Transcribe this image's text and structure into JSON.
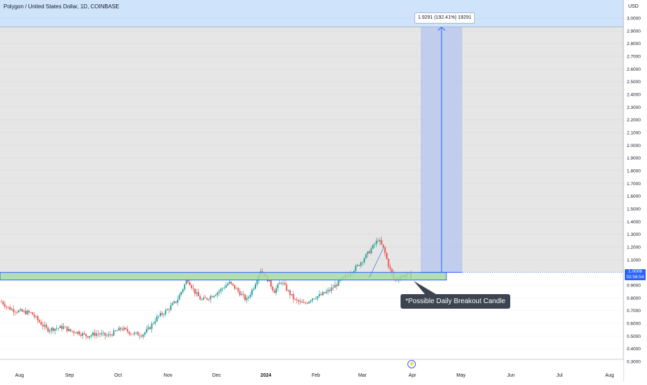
{
  "header": {
    "symbol_title": "Polygon / United States Dollar, 1D, COINBASE",
    "currency": "USD"
  },
  "colors": {
    "up": "#2aa39b",
    "down": "#ef5350",
    "zone_fill": "#a3d9a5",
    "zone_border": "#2962ff",
    "target_band": "#b7c7ee",
    "grey_region": "#e6e6e6"
  },
  "annotations": {
    "breakout_note": "*Possible Daily Breakout Candle",
    "measure_label": "1.9291 (192.41%) 19291",
    "last_price": "1.0008",
    "countdown": "02:56:54"
  },
  "chart_data": {
    "type": "candlestick",
    "title": "Polygon / United States Dollar, 1D, COINBASE",
    "y_unit": "USD",
    "y_ticks": [
      "3.0000",
      "2.9000",
      "2.8000",
      "2.7000",
      "2.6000",
      "2.5000",
      "2.4000",
      "2.3000",
      "2.2000",
      "2.1000",
      "2.0000",
      "1.9000",
      "1.8000",
      "1.7000",
      "1.6000",
      "1.5000",
      "1.4000",
      "1.3000",
      "1.2000",
      "1.1000",
      "1.0000",
      "0.9000",
      "0.8000",
      "0.7000",
      "0.6000",
      "0.5000",
      "0.4000",
      "0.3000"
    ],
    "x_ticks": [
      "Aug",
      "Sep",
      "Oct",
      "Nov",
      "Dec",
      "2024",
      "Feb",
      "Mar",
      "Apr",
      "May",
      "Jun",
      "Jul",
      "Aug"
    ],
    "anchors": [
      [
        0,
        0.78
      ],
      [
        12,
        0.72
      ],
      [
        22,
        0.7
      ],
      [
        32,
        0.69
      ],
      [
        45,
        0.68
      ],
      [
        55,
        0.62
      ],
      [
        68,
        0.55
      ],
      [
        80,
        0.56
      ],
      [
        92,
        0.57
      ],
      [
        100,
        0.54
      ],
      [
        112,
        0.53
      ],
      [
        125,
        0.5
      ],
      [
        140,
        0.52
      ],
      [
        155,
        0.5
      ],
      [
        165,
        0.53
      ],
      [
        175,
        0.56
      ],
      [
        190,
        0.52
      ],
      [
        205,
        0.51
      ],
      [
        215,
        0.56
      ],
      [
        225,
        0.64
      ],
      [
        240,
        0.7
      ],
      [
        255,
        0.78
      ],
      [
        270,
        0.95
      ],
      [
        280,
        0.85
      ],
      [
        290,
        0.78
      ],
      [
        300,
        0.8
      ],
      [
        315,
        0.85
      ],
      [
        330,
        0.92
      ],
      [
        342,
        0.86
      ],
      [
        355,
        0.78
      ],
      [
        365,
        0.88
      ],
      [
        375,
        1.02
      ],
      [
        385,
        0.95
      ],
      [
        395,
        0.85
      ],
      [
        405,
        0.93
      ],
      [
        415,
        0.85
      ],
      [
        425,
        0.78
      ],
      [
        438,
        0.75
      ],
      [
        450,
        0.8
      ],
      [
        462,
        0.82
      ],
      [
        475,
        0.86
      ],
      [
        490,
        0.93
      ],
      [
        505,
        1.0
      ],
      [
        515,
        1.05
      ],
      [
        530,
        1.15
      ],
      [
        545,
        1.26
      ],
      [
        553,
        1.18
      ],
      [
        560,
        1.05
      ],
      [
        568,
        0.94
      ],
      [
        578,
        0.97
      ],
      [
        585,
        0.98
      ],
      [
        592,
        0.97
      ]
    ],
    "candle_count": 238,
    "support_zone": [
      0.94,
      1.0
    ],
    "target_level": 2.93,
    "last_price": 1.0008,
    "projection_percent": "192.41%"
  }
}
